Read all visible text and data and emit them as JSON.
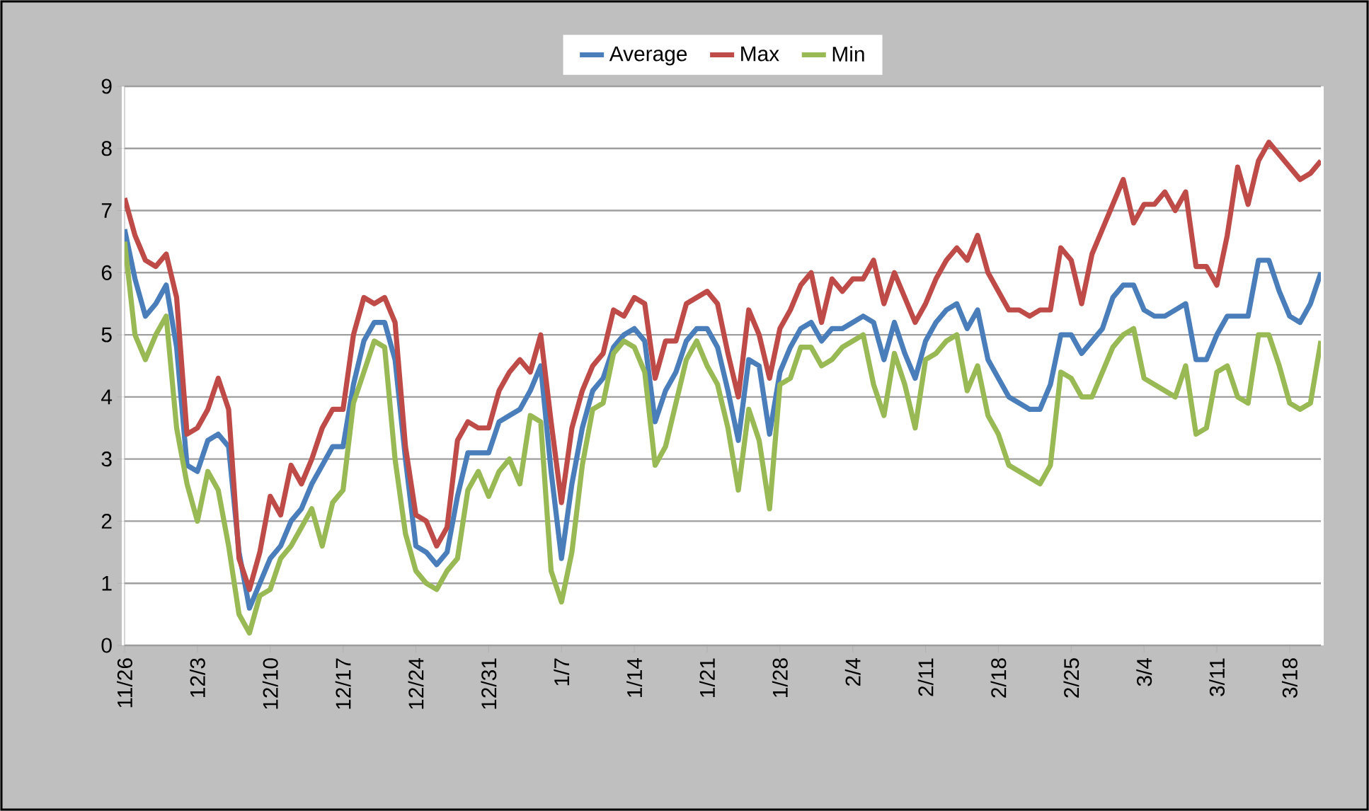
{
  "chart_data": {
    "type": "line",
    "legend": "top",
    "grid": "y",
    "marker": "none",
    "line_style": "solid",
    "categories": [
      "11/26",
      null,
      null,
      null,
      null,
      null,
      null,
      "12/3",
      null,
      null,
      null,
      null,
      null,
      null,
      "12/10",
      null,
      null,
      null,
      null,
      null,
      null,
      "12/17",
      null,
      null,
      null,
      null,
      null,
      null,
      "12/24",
      null,
      null,
      null,
      null,
      null,
      null,
      "12/31",
      null,
      null,
      null,
      null,
      null,
      null,
      "1/7",
      null,
      null,
      null,
      null,
      null,
      null,
      "1/14",
      null,
      null,
      null,
      null,
      null,
      null,
      "1/21",
      null,
      null,
      null,
      null,
      null,
      null,
      "1/28",
      null,
      null,
      null,
      null,
      null,
      null,
      "2/4",
      null,
      null,
      null,
      null,
      null,
      null,
      "2/11",
      null,
      null,
      null,
      null,
      null,
      null,
      "2/18",
      null,
      null,
      null,
      null,
      null,
      null,
      "2/25",
      null,
      null,
      null,
      null,
      null,
      null,
      "3/4",
      null,
      null,
      null,
      null,
      null,
      null,
      "3/11",
      null,
      null,
      null,
      null,
      null,
      null,
      "3/18",
      null,
      null,
      null
    ],
    "ylim": [
      0,
      9
    ],
    "yticks": [
      0,
      1,
      2,
      3,
      4,
      5,
      6,
      7,
      8,
      9
    ],
    "series": [
      {
        "name": "Average",
        "color": "#4a7ebb",
        "values": [
          6.7,
          5.9,
          5.3,
          5.5,
          5.8,
          4.8,
          2.9,
          2.8,
          3.3,
          3.4,
          3.2,
          1.5,
          0.6,
          1.0,
          1.4,
          1.6,
          2.0,
          2.2,
          2.6,
          2.9,
          3.2,
          3.2,
          4.2,
          4.9,
          5.2,
          5.2,
          4.6,
          3.0,
          1.6,
          1.5,
          1.3,
          1.5,
          2.4,
          3.1,
          3.1,
          3.1,
          3.6,
          3.7,
          3.8,
          4.1,
          4.5,
          2.8,
          1.4,
          2.6,
          3.5,
          4.1,
          4.3,
          4.8,
          5.0,
          5.1,
          4.9,
          3.6,
          4.1,
          4.4,
          4.9,
          5.1,
          5.1,
          4.8,
          4.1,
          3.3,
          4.6,
          4.5,
          3.4,
          4.4,
          4.8,
          5.1,
          5.2,
          4.9,
          5.1,
          5.1,
          5.2,
          5.3,
          5.2,
          4.6,
          5.2,
          4.7,
          4.3,
          4.9,
          5.2,
          5.4,
          5.5,
          5.1,
          5.4,
          4.6,
          4.3,
          4.0,
          3.9,
          3.8,
          3.8,
          4.2,
          5.0,
          5.0,
          4.7,
          4.9,
          5.1,
          5.6,
          5.8,
          5.8,
          5.4,
          5.3,
          5.3,
          5.4,
          5.5,
          4.6,
          4.6,
          5.0,
          5.3,
          5.3,
          5.3,
          6.2,
          6.2,
          5.7,
          5.3,
          5.2,
          5.5,
          6.0
        ]
      },
      {
        "name": "Max",
        "color": "#be4b48",
        "values": [
          7.2,
          6.6,
          6.2,
          6.1,
          6.3,
          5.6,
          3.4,
          3.5,
          3.8,
          4.3,
          3.8,
          1.4,
          0.9,
          1.5,
          2.4,
          2.1,
          2.9,
          2.6,
          3.0,
          3.5,
          3.8,
          3.8,
          5.0,
          5.6,
          5.5,
          5.6,
          5.2,
          3.2,
          2.1,
          2.0,
          1.6,
          1.9,
          3.3,
          3.6,
          3.5,
          3.5,
          4.1,
          4.4,
          4.6,
          4.4,
          5.0,
          3.6,
          2.3,
          3.5,
          4.1,
          4.5,
          4.7,
          5.4,
          5.3,
          5.6,
          5.5,
          4.3,
          4.9,
          4.9,
          5.5,
          5.6,
          5.7,
          5.5,
          4.7,
          4.0,
          5.4,
          5.0,
          4.3,
          5.1,
          5.4,
          5.8,
          6.0,
          5.2,
          5.9,
          5.7,
          5.9,
          5.9,
          6.2,
          5.5,
          6.0,
          5.6,
          5.2,
          5.5,
          5.9,
          6.2,
          6.4,
          6.2,
          6.6,
          6.0,
          5.7,
          5.4,
          5.4,
          5.3,
          5.4,
          5.4,
          6.4,
          6.2,
          5.5,
          6.3,
          6.7,
          7.1,
          7.5,
          6.8,
          7.1,
          7.1,
          7.3,
          7.0,
          7.3,
          6.1,
          6.1,
          5.8,
          6.6,
          7.7,
          7.1,
          7.8,
          8.1,
          7.9,
          7.7,
          7.5,
          7.6,
          7.8
        ]
      },
      {
        "name": "Min",
        "color": "#98b954",
        "values": [
          6.5,
          5.0,
          4.6,
          5.0,
          5.3,
          3.5,
          2.6,
          2.0,
          2.8,
          2.5,
          1.6,
          0.5,
          0.2,
          0.8,
          0.9,
          1.4,
          1.6,
          1.9,
          2.2,
          1.6,
          2.3,
          2.5,
          3.9,
          4.4,
          4.9,
          4.8,
          3.0,
          1.8,
          1.2,
          1.0,
          0.9,
          1.2,
          1.4,
          2.5,
          2.8,
          2.4,
          2.8,
          3.0,
          2.6,
          3.7,
          3.6,
          1.2,
          0.7,
          1.5,
          2.9,
          3.8,
          3.9,
          4.7,
          4.9,
          4.8,
          4.4,
          2.9,
          3.2,
          3.9,
          4.6,
          4.9,
          4.5,
          4.2,
          3.5,
          2.5,
          3.8,
          3.3,
          2.2,
          4.2,
          4.3,
          4.8,
          4.8,
          4.5,
          4.6,
          4.8,
          4.9,
          5.0,
          4.2,
          3.7,
          4.7,
          4.2,
          3.5,
          4.6,
          4.7,
          4.9,
          5.0,
          4.1,
          4.5,
          3.7,
          3.4,
          2.9,
          2.8,
          2.7,
          2.6,
          2.9,
          4.4,
          4.3,
          4.0,
          4.0,
          4.4,
          4.8,
          5.0,
          5.1,
          4.3,
          4.2,
          4.1,
          4.0,
          4.5,
          3.4,
          3.5,
          4.4,
          4.5,
          4.0,
          3.9,
          5.0,
          5.0,
          4.5,
          3.9,
          3.8,
          3.9,
          4.9
        ]
      }
    ]
  }
}
